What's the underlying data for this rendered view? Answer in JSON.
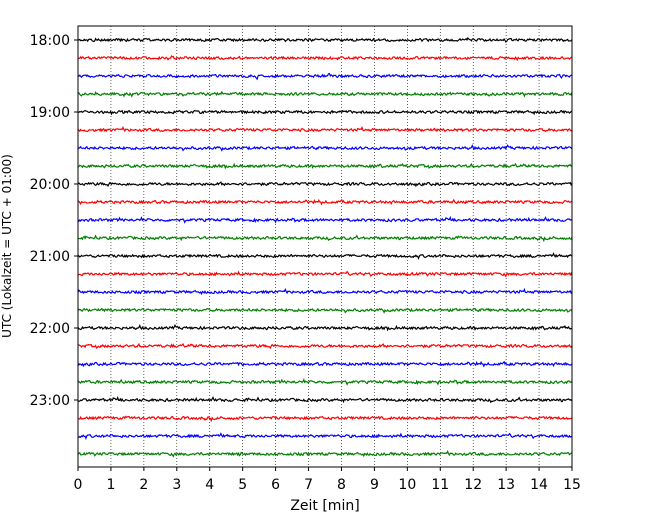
{
  "chart_data": {
    "type": "line",
    "title": "",
    "xlabel": "Zeit  [min]",
    "ylabel": "UTC (Lokalzeit = UTC + 01:00)",
    "xlim": [
      0,
      15
    ],
    "x_ticks": [
      0,
      1,
      2,
      3,
      4,
      5,
      6,
      7,
      8,
      9,
      10,
      11,
      12,
      13,
      14,
      15
    ],
    "x_tick_labels": [
      "0",
      "1",
      "2",
      "3",
      "4",
      "5",
      "6",
      "7",
      "8",
      "9",
      "10",
      "11",
      "12",
      "13",
      "14",
      "15"
    ],
    "y_tick_labels": [
      "18:00",
      "19:00",
      "20:00",
      "21:00",
      "22:00",
      "23:00"
    ],
    "grid": "vertical dotted at each minute",
    "color_cycle": [
      "#000000",
      "#ff0000",
      "#0000ff",
      "#008000"
    ],
    "series": [
      {
        "start": "18:00",
        "color": "#000000"
      },
      {
        "start": "18:15",
        "color": "#ff0000"
      },
      {
        "start": "18:30",
        "color": "#0000ff"
      },
      {
        "start": "18:45",
        "color": "#008000"
      },
      {
        "start": "19:00",
        "color": "#000000"
      },
      {
        "start": "19:15",
        "color": "#ff0000"
      },
      {
        "start": "19:30",
        "color": "#0000ff"
      },
      {
        "start": "19:45",
        "color": "#008000"
      },
      {
        "start": "20:00",
        "color": "#000000"
      },
      {
        "start": "20:15",
        "color": "#ff0000"
      },
      {
        "start": "20:30",
        "color": "#0000ff"
      },
      {
        "start": "20:45",
        "color": "#008000"
      },
      {
        "start": "21:00",
        "color": "#000000"
      },
      {
        "start": "21:15",
        "color": "#ff0000"
      },
      {
        "start": "21:30",
        "color": "#0000ff"
      },
      {
        "start": "21:45",
        "color": "#008000"
      },
      {
        "start": "22:00",
        "color": "#000000"
      },
      {
        "start": "22:15",
        "color": "#ff0000"
      },
      {
        "start": "22:30",
        "color": "#0000ff"
      },
      {
        "start": "22:45",
        "color": "#008000"
      },
      {
        "start": "23:00",
        "color": "#000000"
      },
      {
        "start": "23:15",
        "color": "#ff0000"
      },
      {
        "start": "23:30",
        "color": "#0000ff"
      },
      {
        "start": "23:45",
        "color": "#008000"
      }
    ]
  }
}
